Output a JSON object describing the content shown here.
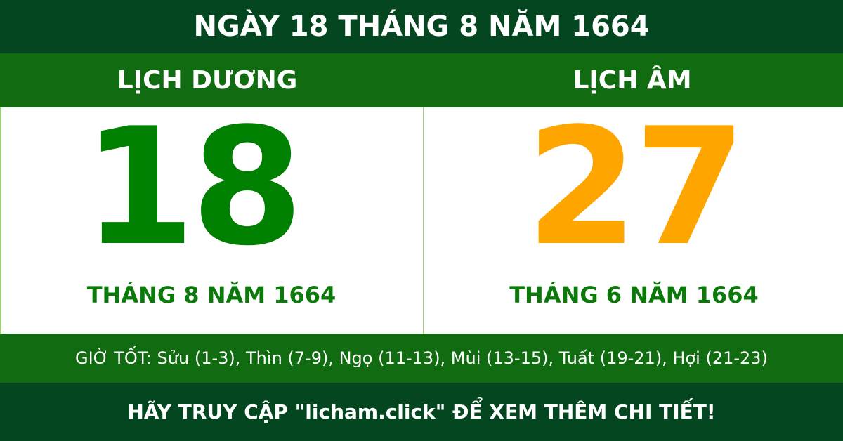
{
  "title": "NGÀY 18 THÁNG 8 NĂM 1664",
  "solar": {
    "label": "LỊCH DƯƠNG",
    "day": "18",
    "month_year": "THÁNG 8 NĂM 1664"
  },
  "lunar": {
    "label": "LỊCH ÂM",
    "day": "27",
    "month_year": "THÁNG 6 NĂM 1664"
  },
  "good_hours": "GIỜ TỐT: Sửu (1-3), Thìn (7-9), Ngọ (11-13), Mùi (13-15), Tuất (19-21), Hợi (21-23)",
  "footer": "HÃY TRUY CẬP \"licham.click\" ĐỂ XEM THÊM CHI TIẾT!",
  "colors": {
    "dark_green": "#034620",
    "green": "#116b11",
    "solar_day": "#008000",
    "lunar_day": "#ffa500"
  }
}
